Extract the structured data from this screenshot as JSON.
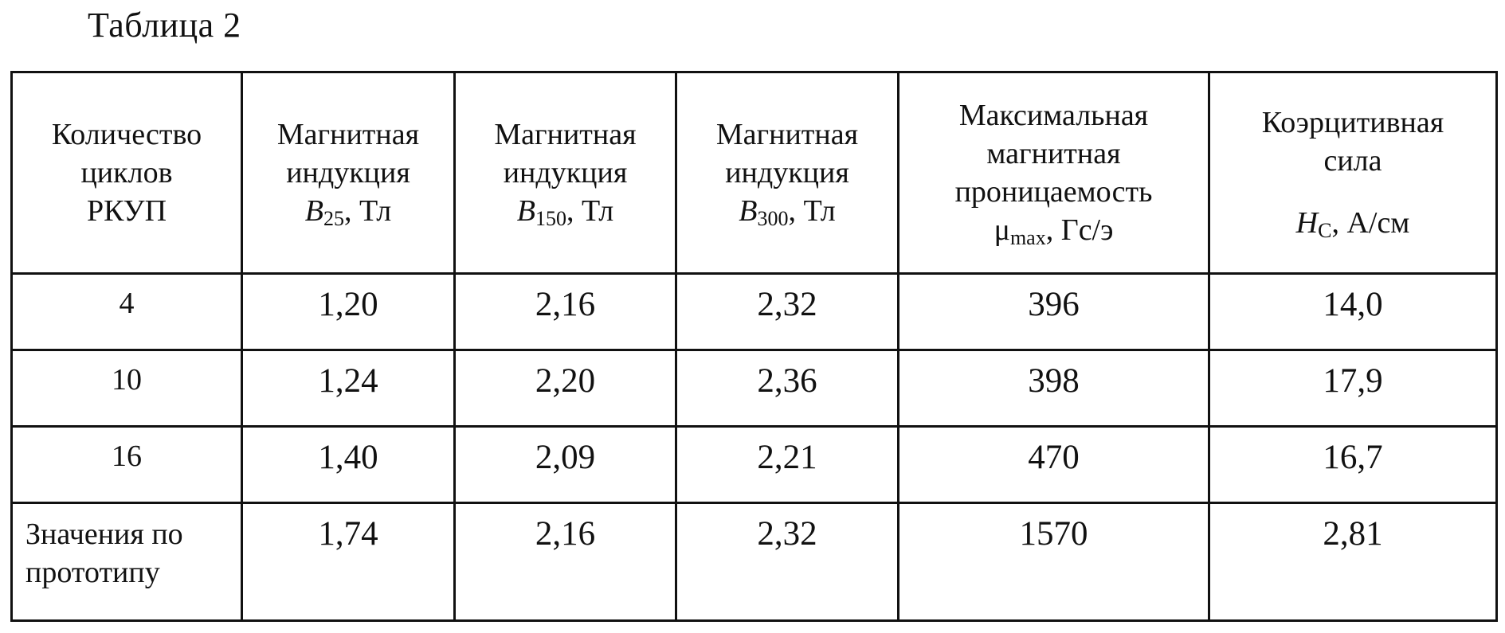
{
  "caption": "Таблица 2",
  "headers": [
    {
      "lines": [
        "Количество",
        "циклов",
        "РКУП"
      ]
    },
    {
      "lines": [
        "Магнитная",
        "индукция"
      ],
      "symbol": "B",
      "sub": "25",
      "unit": ", Тл"
    },
    {
      "lines": [
        "Магнитная",
        "индукция"
      ],
      "symbol": "B",
      "sub": "150",
      "unit": ", Тл"
    },
    {
      "lines": [
        "Магнитная",
        "индукция"
      ],
      "symbol": "B",
      "sub": "300",
      "unit": ", Тл"
    },
    {
      "lines": [
        "Максимальная",
        "магнитная",
        "проницаемость"
      ],
      "symbol": "μ",
      "sub": "max",
      "unit": ", Гс/э"
    },
    {
      "lines": [
        "Коэрцитивная",
        "сила"
      ],
      "symbol": "H",
      "sub": "C",
      "unit": ", А/см"
    }
  ],
  "rows": [
    [
      "4",
      "1,20",
      "2,16",
      "2,32",
      "396",
      "14,0"
    ],
    [
      "10",
      "1,24",
      "2,20",
      "2,36",
      "398",
      "17,9"
    ],
    [
      "16",
      "1,40",
      "2,09",
      "2,21",
      "470",
      "16,7"
    ]
  ],
  "last_row": {
    "label_lines": [
      "Значения по",
      "прототипу"
    ],
    "values": [
      "1,74",
      "2,16",
      "2,32",
      "1570",
      "2,81"
    ]
  }
}
